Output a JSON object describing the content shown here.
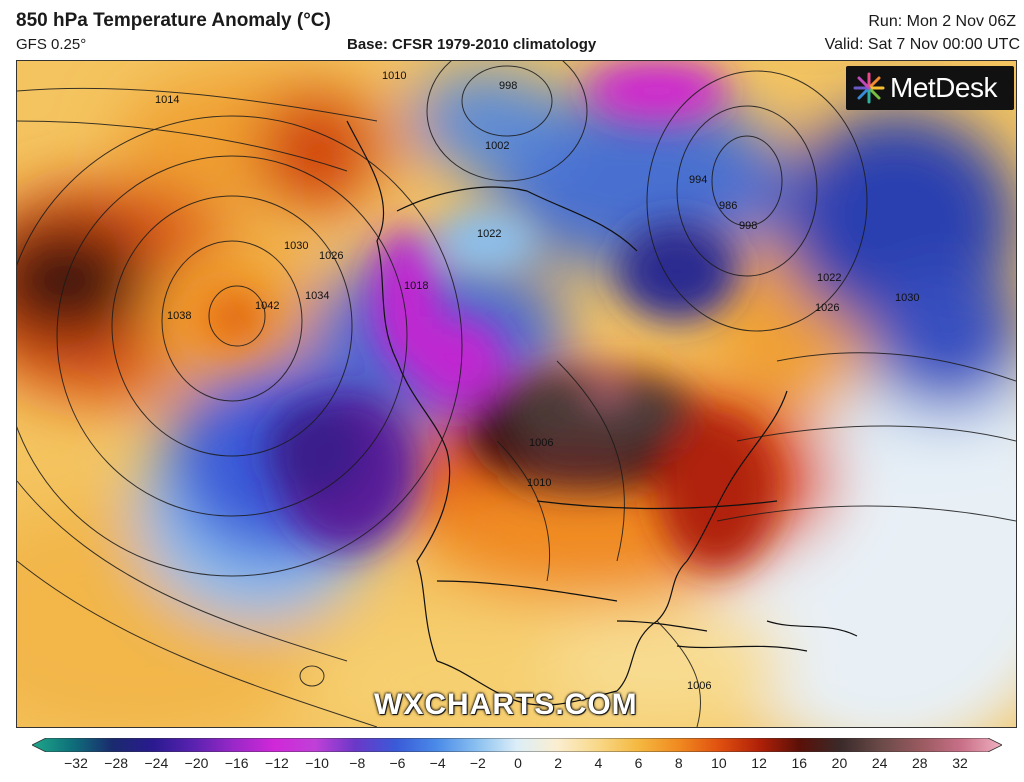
{
  "header": {
    "title": "850 hPa Temperature Anomaly (°C)",
    "model": "GFS 0.25°",
    "base": "Base: CFSR 1979-2010 climatology",
    "run": "Run: Mon 2 Nov 06Z",
    "valid": "Valid: Sat 7 Nov 00:00 UTC"
  },
  "logo": {
    "text": "MetDesk",
    "icon": "metdesk-starburst-icon"
  },
  "watermark": "WXCHARTS.COM",
  "isobars": [
    {
      "label": "1014"
    },
    {
      "label": "1010"
    },
    {
      "label": "1002"
    },
    {
      "label": "998"
    },
    {
      "label": "1038"
    },
    {
      "label": "1042"
    },
    {
      "label": "1034"
    },
    {
      "label": "1030"
    },
    {
      "label": "1026"
    },
    {
      "label": "1022"
    },
    {
      "label": "1018"
    },
    {
      "label": "1006"
    },
    {
      "label": "986"
    },
    {
      "label": "994"
    },
    {
      "label": "998"
    },
    {
      "label": "1022"
    },
    {
      "label": "1026"
    },
    {
      "label": "1030"
    },
    {
      "label": "1006"
    },
    {
      "label": "1010"
    }
  ],
  "colorbar": {
    "stops": [
      "#1fa88a",
      "#0e6f7a",
      "#1a2a6e",
      "#2a1a90",
      "#5a22b0",
      "#9a28c8",
      "#d028d8",
      "#c040d8",
      "#6a38c8",
      "#3a5ad8",
      "#4a8ae8",
      "#8ac0f0",
      "#dceef8",
      "#fbeed0",
      "#f8d888",
      "#f5b840",
      "#f08a20",
      "#e05010",
      "#b02008",
      "#5a1008",
      "#3a2a2a",
      "#6a4a48",
      "#9a5a60",
      "#c87088",
      "#f0b0c0"
    ],
    "ticks": [
      "−32",
      "−28",
      "−24",
      "−20",
      "−16",
      "−12",
      "−10",
      "−8",
      "−6",
      "−4",
      "−2",
      "0",
      "2",
      "4",
      "6",
      "8",
      "10",
      "12",
      "16",
      "20",
      "24",
      "28",
      "32"
    ]
  }
}
